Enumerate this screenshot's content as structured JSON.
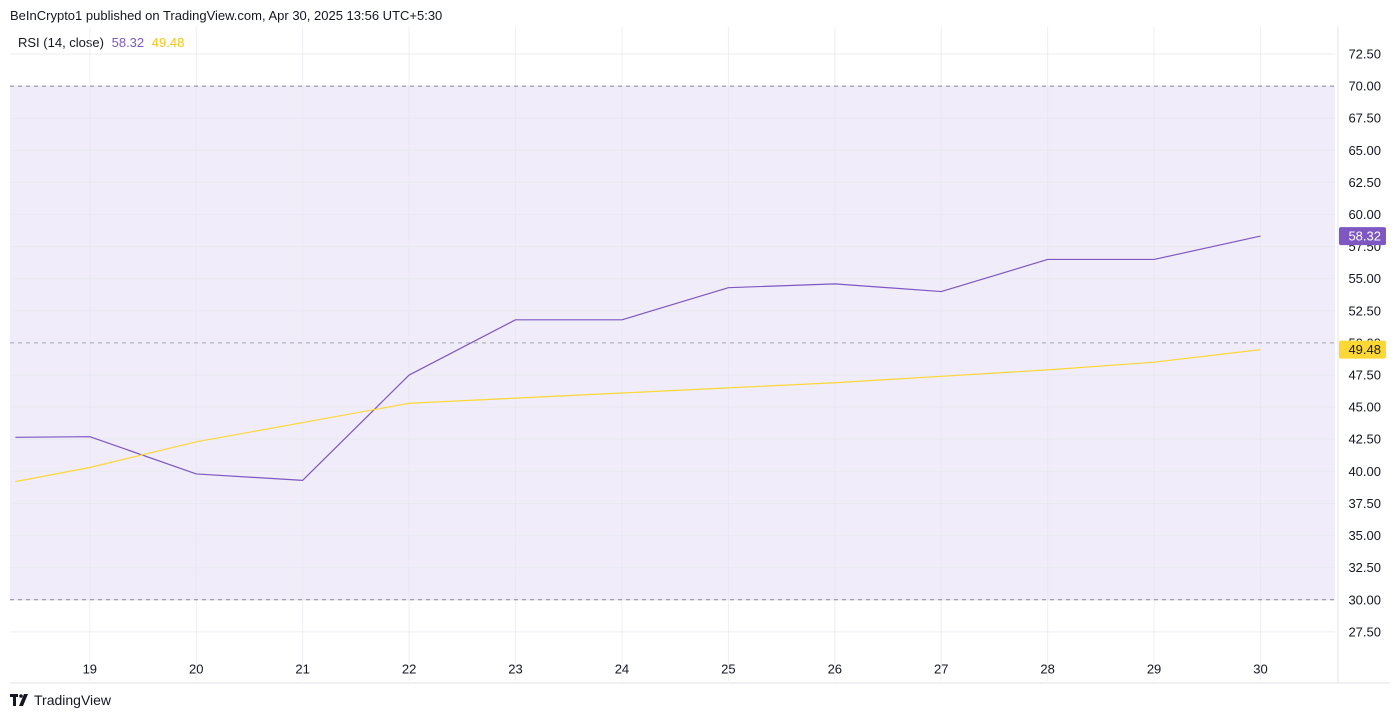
{
  "header": {
    "published_text": "BeInCrypto1 published on TradingView.com, Apr 30, 2025 13:56 UTC+5:30"
  },
  "legend": {
    "indicator_label": "RSI (14, close)",
    "rsi_value": "58.32",
    "ma_value": "49.48"
  },
  "footer": {
    "brand": "TradingView"
  },
  "colors": {
    "rsi": "#7E57C2",
    "ma": "#FDD835",
    "band_fill": "#F0ECF9",
    "band_line": "#787B86",
    "grid": "#F0F3FA",
    "axis_text": "#131722"
  },
  "chart_data": {
    "type": "line",
    "x": [
      "18.3",
      "19",
      "20",
      "21",
      "22",
      "23",
      "24",
      "25",
      "26",
      "27",
      "28",
      "29",
      "30"
    ],
    "x_values": [
      18.3,
      19,
      20,
      21,
      22,
      23,
      24,
      25,
      26,
      27,
      28,
      29,
      30
    ],
    "xlim": [
      18.25,
      30.7
    ],
    "x_ticks": [
      "19",
      "20",
      "21",
      "22",
      "23",
      "24",
      "25",
      "26",
      "27",
      "28",
      "29",
      "30"
    ],
    "ylim": [
      25.7,
      74.6
    ],
    "y_ticks": [
      "27.50",
      "30.00",
      "32.50",
      "35.00",
      "37.50",
      "40.00",
      "42.50",
      "45.00",
      "47.50",
      "50.00",
      "52.50",
      "55.00",
      "57.50",
      "60.00",
      "62.50",
      "65.00",
      "67.50",
      "70.00",
      "72.50"
    ],
    "bands": {
      "upper": 70,
      "middle": 50,
      "lower": 30
    },
    "series": [
      {
        "name": "RSI (14, close)",
        "key": "rsi",
        "values": [
          42.65,
          42.7,
          39.8,
          39.3,
          47.5,
          51.8,
          51.8,
          54.3,
          54.6,
          54.0,
          56.5,
          56.5,
          58.32
        ],
        "last_label": "58.32"
      },
      {
        "name": "",
        "key": "ma",
        "values": [
          39.2,
          40.3,
          42.3,
          43.8,
          45.3,
          45.7,
          46.1,
          46.5,
          46.9,
          47.4,
          47.9,
          48.5,
          49.48
        ],
        "last_label": "49.48"
      }
    ],
    "grid": true
  }
}
